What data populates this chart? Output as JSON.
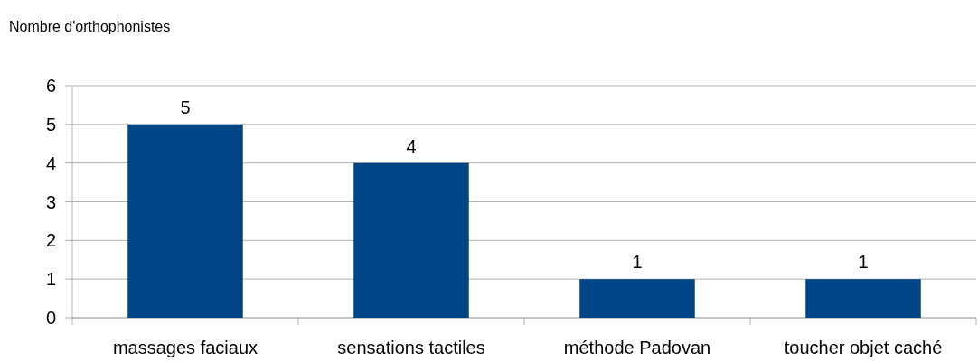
{
  "chart_data": {
    "type": "bar",
    "ylabel": "Nombre d'orthophonistes",
    "categories": [
      "massages faciaux",
      "sensations tactiles",
      "méthode Padovan",
      "toucher objet caché"
    ],
    "values": [
      5,
      4,
      1,
      1
    ],
    "color": "#004586",
    "ylim": [
      0,
      6
    ],
    "yticks": [
      0,
      1,
      2,
      3,
      4,
      5,
      6
    ],
    "grid": "y",
    "data_labels": true
  }
}
